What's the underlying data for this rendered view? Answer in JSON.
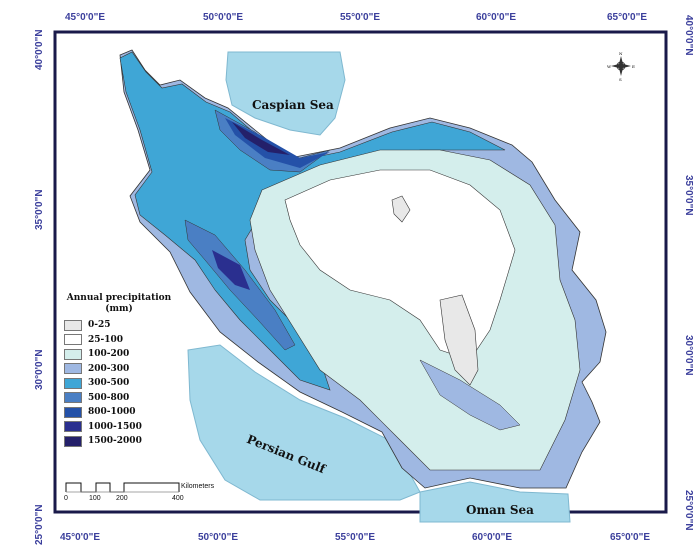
{
  "axes": {
    "longitude_labels": [
      "45°0'0\"E",
      "50°0'0\"E",
      "55°0'0\"E",
      "60°0'0\"E",
      "65°0'0\"E"
    ],
    "latitude_labels": [
      "40°0'0\"N",
      "35°0'0\"N",
      "30°0'0\"N",
      "25°0'0\"N"
    ]
  },
  "seas": {
    "caspian": "Caspian Sea",
    "persian_gulf": "Persian Gulf",
    "oman": "Oman Sea"
  },
  "legend": {
    "title": "Annual precipitation (mm)",
    "items": [
      {
        "label": "0-25",
        "color": "#e8e8e8"
      },
      {
        "label": "25-100",
        "color": "#ffffff"
      },
      {
        "label": "100-200",
        "color": "#d4eeec"
      },
      {
        "label": "200-300",
        "color": "#9fb8e2"
      },
      {
        "label": "300-500",
        "color": "#3fa6d6"
      },
      {
        "label": "500-800",
        "color": "#4a7fc4"
      },
      {
        "label": "800-1000",
        "color": "#2451a8"
      },
      {
        "label": "1000-1500",
        "color": "#2a2f8f"
      },
      {
        "label": "1500-2000",
        "color": "#24206a"
      }
    ]
  },
  "scale_bar": {
    "ticks": [
      "0",
      "100",
      "200",
      "400"
    ],
    "unit": "Kilometers"
  },
  "compass": {
    "letters": [
      "N",
      "E",
      "S",
      "W"
    ]
  },
  "colors": {
    "sea": "#a6d8ea",
    "frame": "#1a1a4a",
    "labels": "#3b3f9c"
  }
}
